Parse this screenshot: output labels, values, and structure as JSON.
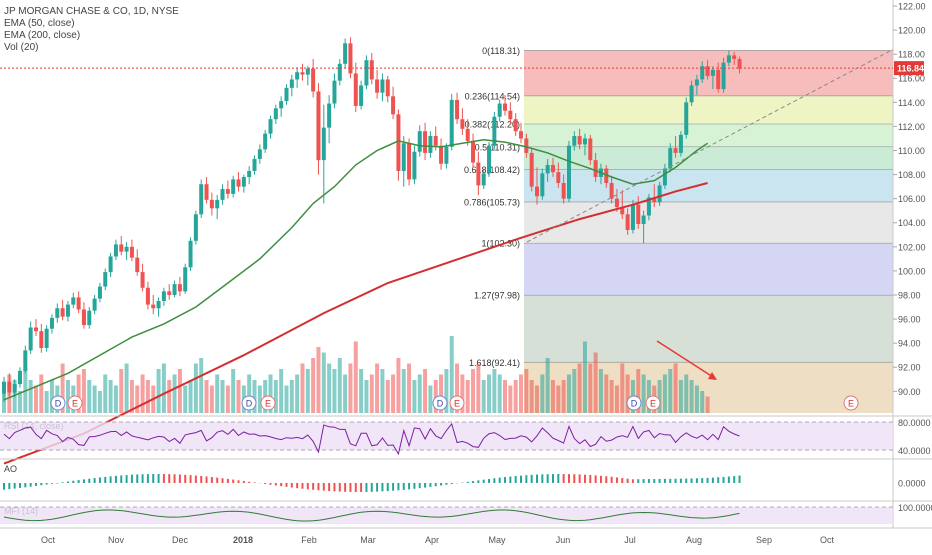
{
  "chart_data": {
    "type": "candlestick",
    "symbol_title": "JP MORGAN CHASE & CO, 1D, NYSE",
    "indicators": [
      "EMA (50, close)",
      "EMA (200, close)",
      "Vol (20)"
    ],
    "x_axis_labels": [
      "Oct",
      "Nov",
      "Dec",
      "2018",
      "Feb",
      "Mar",
      "Apr",
      "May",
      "Jun",
      "Jul",
      "Aug",
      "Sep",
      "Oct"
    ],
    "price_axis": {
      "ticks": [
        "122.00",
        "120.00",
        "118.00",
        "116.00",
        "114.00",
        "112.00",
        "110.00",
        "108.00",
        "106.00",
        "104.00",
        "102.00",
        "100.00",
        "98.00",
        "96.00",
        "94.00",
        "92.00",
        "90.00"
      ],
      "ylim": [
        88.2,
        122.0
      ],
      "current_price": "116.84",
      "current_price_value": 116.84,
      "current_price_color": "#e53935"
    },
    "fibonacci": {
      "levels": [
        {
          "label": "0(118.31)",
          "value": 118.31,
          "color": "#f4a7a7"
        },
        {
          "label": "0.236(114.54)",
          "value": 114.54,
          "color": "#e8f0b0"
        },
        {
          "label": "0.382(112.20)",
          "value": 112.2,
          "color": "#c8efc8"
        },
        {
          "label": "0.5(110.31)",
          "value": 110.31,
          "color": "#b8e6c8"
        },
        {
          "label": "0.618(108.42)",
          "value": 108.42,
          "color": "#b8dcea"
        },
        {
          "label": "0.786(105.73)",
          "value": 105.73,
          "color": "#e0e0e0"
        },
        {
          "label": "1(102.30)",
          "value": 102.3,
          "color": "#c5c8ef"
        },
        {
          "label": "1.27(97.98)",
          "value": 97.98,
          "color": "#c8d6c8"
        },
        {
          "label": "1.618(92.41)",
          "value": 92.41,
          "color": "#e8d3b0"
        }
      ]
    },
    "candles": [
      {
        "o": 89.8,
        "h": 91.2,
        "l": 89.1,
        "c": 90.8
      },
      {
        "o": 90.8,
        "h": 91.5,
        "l": 89.6,
        "c": 89.9
      },
      {
        "o": 89.9,
        "h": 91.0,
        "l": 89.5,
        "c": 90.6
      },
      {
        "o": 90.6,
        "h": 92.0,
        "l": 90.3,
        "c": 91.7
      },
      {
        "o": 91.7,
        "h": 93.8,
        "l": 91.5,
        "c": 93.4
      },
      {
        "o": 93.4,
        "h": 95.8,
        "l": 93.1,
        "c": 95.3
      },
      {
        "o": 95.3,
        "h": 96.0,
        "l": 94.6,
        "c": 95.0
      },
      {
        "o": 95.0,
        "h": 95.6,
        "l": 93.2,
        "c": 93.6
      },
      {
        "o": 93.6,
        "h": 95.5,
        "l": 93.3,
        "c": 95.2
      },
      {
        "o": 95.2,
        "h": 96.4,
        "l": 94.8,
        "c": 96.1
      },
      {
        "o": 96.1,
        "h": 97.3,
        "l": 95.7,
        "c": 96.9
      },
      {
        "o": 96.9,
        "h": 97.6,
        "l": 95.9,
        "c": 96.2
      },
      {
        "o": 96.2,
        "h": 97.5,
        "l": 95.8,
        "c": 97.2
      },
      {
        "o": 97.2,
        "h": 98.2,
        "l": 96.9,
        "c": 97.8
      },
      {
        "o": 97.8,
        "h": 98.3,
        "l": 96.5,
        "c": 96.8
      },
      {
        "o": 96.8,
        "h": 97.4,
        "l": 95.2,
        "c": 95.5
      },
      {
        "o": 95.5,
        "h": 97.0,
        "l": 95.2,
        "c": 96.7
      },
      {
        "o": 96.7,
        "h": 98.0,
        "l": 96.4,
        "c": 97.7
      },
      {
        "o": 97.7,
        "h": 99.0,
        "l": 97.4,
        "c": 98.7
      },
      {
        "o": 98.7,
        "h": 100.2,
        "l": 98.4,
        "c": 99.9
      },
      {
        "o": 99.9,
        "h": 101.5,
        "l": 99.5,
        "c": 101.2
      },
      {
        "o": 101.2,
        "h": 102.6,
        "l": 100.9,
        "c": 102.2
      },
      {
        "o": 102.2,
        "h": 102.9,
        "l": 101.3,
        "c": 101.6
      },
      {
        "o": 101.6,
        "h": 102.4,
        "l": 100.9,
        "c": 102.0
      },
      {
        "o": 102.0,
        "h": 102.6,
        "l": 100.8,
        "c": 101.1
      },
      {
        "o": 101.1,
        "h": 101.8,
        "l": 99.6,
        "c": 99.9
      },
      {
        "o": 99.9,
        "h": 100.6,
        "l": 98.3,
        "c": 98.6
      },
      {
        "o": 98.6,
        "h": 99.1,
        "l": 96.8,
        "c": 97.2
      },
      {
        "o": 97.2,
        "h": 98.0,
        "l": 96.4,
        "c": 96.9
      },
      {
        "o": 96.9,
        "h": 97.8,
        "l": 96.2,
        "c": 97.5
      },
      {
        "o": 97.5,
        "h": 98.6,
        "l": 97.1,
        "c": 98.3
      },
      {
        "o": 98.3,
        "h": 98.9,
        "l": 97.6,
        "c": 98.0
      },
      {
        "o": 98.0,
        "h": 99.2,
        "l": 97.8,
        "c": 98.9
      },
      {
        "o": 98.9,
        "h": 99.5,
        "l": 97.9,
        "c": 98.3
      },
      {
        "o": 98.3,
        "h": 100.6,
        "l": 98.1,
        "c": 100.3
      },
      {
        "o": 100.3,
        "h": 102.8,
        "l": 100.0,
        "c": 102.5
      },
      {
        "o": 102.5,
        "h": 105.0,
        "l": 102.2,
        "c": 104.7
      },
      {
        "o": 104.7,
        "h": 107.6,
        "l": 104.4,
        "c": 107.2
      },
      {
        "o": 107.2,
        "h": 107.8,
        "l": 105.6,
        "c": 105.9
      },
      {
        "o": 105.9,
        "h": 106.5,
        "l": 104.6,
        "c": 105.2
      },
      {
        "o": 105.2,
        "h": 106.3,
        "l": 104.3,
        "c": 105.9
      },
      {
        "o": 105.9,
        "h": 107.2,
        "l": 105.5,
        "c": 106.8
      },
      {
        "o": 106.8,
        "h": 107.5,
        "l": 106.0,
        "c": 106.4
      },
      {
        "o": 106.4,
        "h": 107.9,
        "l": 106.1,
        "c": 107.6
      },
      {
        "o": 107.6,
        "h": 108.2,
        "l": 106.6,
        "c": 107.0
      },
      {
        "o": 107.0,
        "h": 108.0,
        "l": 106.5,
        "c": 107.8
      },
      {
        "o": 107.8,
        "h": 108.7,
        "l": 107.2,
        "c": 108.3
      },
      {
        "o": 108.3,
        "h": 109.6,
        "l": 108.0,
        "c": 109.3
      },
      {
        "o": 109.3,
        "h": 110.5,
        "l": 108.9,
        "c": 110.1
      },
      {
        "o": 110.1,
        "h": 111.7,
        "l": 109.8,
        "c": 111.4
      },
      {
        "o": 111.4,
        "h": 112.9,
        "l": 111.0,
        "c": 112.6
      },
      {
        "o": 112.6,
        "h": 113.8,
        "l": 112.2,
        "c": 113.5
      },
      {
        "o": 113.5,
        "h": 114.5,
        "l": 112.8,
        "c": 114.1
      },
      {
        "o": 114.1,
        "h": 115.5,
        "l": 113.8,
        "c": 115.2
      },
      {
        "o": 115.2,
        "h": 116.3,
        "l": 114.5,
        "c": 115.9
      },
      {
        "o": 115.9,
        "h": 116.9,
        "l": 115.2,
        "c": 116.5
      },
      {
        "o": 116.5,
        "h": 117.2,
        "l": 115.8,
        "c": 116.3
      },
      {
        "o": 116.3,
        "h": 117.0,
        "l": 115.4,
        "c": 116.8
      },
      {
        "o": 116.8,
        "h": 117.6,
        "l": 114.4,
        "c": 114.9
      },
      {
        "o": 114.9,
        "h": 115.6,
        "l": 108.0,
        "c": 109.2
      },
      {
        "o": 109.2,
        "h": 113.8,
        "l": 105.6,
        "c": 111.9
      },
      {
        "o": 111.9,
        "h": 114.6,
        "l": 110.6,
        "c": 113.9
      },
      {
        "o": 113.9,
        "h": 116.4,
        "l": 113.5,
        "c": 115.8
      },
      {
        "o": 115.8,
        "h": 117.6,
        "l": 115.4,
        "c": 117.2
      },
      {
        "o": 117.2,
        "h": 119.3,
        "l": 116.8,
        "c": 118.9
      },
      {
        "o": 118.9,
        "h": 119.4,
        "l": 116.0,
        "c": 116.4
      },
      {
        "o": 116.4,
        "h": 117.3,
        "l": 113.2,
        "c": 113.7
      },
      {
        "o": 113.7,
        "h": 115.8,
        "l": 113.4,
        "c": 115.4
      },
      {
        "o": 115.4,
        "h": 117.9,
        "l": 115.1,
        "c": 117.5
      },
      {
        "o": 117.5,
        "h": 118.1,
        "l": 115.5,
        "c": 115.9
      },
      {
        "o": 115.9,
        "h": 116.7,
        "l": 114.3,
        "c": 114.8
      },
      {
        "o": 114.8,
        "h": 116.4,
        "l": 114.1,
        "c": 115.9
      },
      {
        "o": 115.9,
        "h": 116.2,
        "l": 114.0,
        "c": 114.5
      },
      {
        "o": 114.5,
        "h": 115.3,
        "l": 112.6,
        "c": 113.0
      },
      {
        "o": 113.0,
        "h": 113.4,
        "l": 107.5,
        "c": 108.3
      },
      {
        "o": 108.3,
        "h": 111.2,
        "l": 107.0,
        "c": 110.6
      },
      {
        "o": 110.6,
        "h": 111.0,
        "l": 107.1,
        "c": 107.6
      },
      {
        "o": 107.6,
        "h": 110.4,
        "l": 107.2,
        "c": 109.9
      },
      {
        "o": 109.9,
        "h": 112.1,
        "l": 109.5,
        "c": 111.6
      },
      {
        "o": 111.6,
        "h": 112.3,
        "l": 109.2,
        "c": 109.8
      },
      {
        "o": 109.8,
        "h": 111.6,
        "l": 109.4,
        "c": 111.2
      },
      {
        "o": 111.2,
        "h": 112.0,
        "l": 110.0,
        "c": 110.4
      },
      {
        "o": 110.4,
        "h": 111.0,
        "l": 108.4,
        "c": 108.9
      },
      {
        "o": 108.9,
        "h": 110.6,
        "l": 108.5,
        "c": 110.3
      },
      {
        "o": 110.3,
        "h": 114.7,
        "l": 110.0,
        "c": 114.2
      },
      {
        "o": 114.2,
        "h": 114.8,
        "l": 112.2,
        "c": 112.6
      },
      {
        "o": 112.6,
        "h": 113.5,
        "l": 111.3,
        "c": 111.8
      },
      {
        "o": 111.8,
        "h": 112.6,
        "l": 110.4,
        "c": 110.8
      },
      {
        "o": 110.8,
        "h": 111.4,
        "l": 108.6,
        "c": 109.0
      },
      {
        "o": 109.0,
        "h": 109.9,
        "l": 106.3,
        "c": 107.1
      },
      {
        "o": 107.1,
        "h": 108.4,
        "l": 106.8,
        "c": 108.1
      },
      {
        "o": 108.1,
        "h": 110.7,
        "l": 107.8,
        "c": 110.4
      },
      {
        "o": 110.4,
        "h": 113.2,
        "l": 110.1,
        "c": 112.8
      },
      {
        "o": 112.8,
        "h": 114.2,
        "l": 112.4,
        "c": 113.9
      },
      {
        "o": 113.9,
        "h": 114.6,
        "l": 112.9,
        "c": 113.3
      },
      {
        "o": 113.3,
        "h": 114.0,
        "l": 112.2,
        "c": 112.6
      },
      {
        "o": 112.6,
        "h": 113.1,
        "l": 111.2,
        "c": 111.6
      },
      {
        "o": 111.6,
        "h": 112.3,
        "l": 110.6,
        "c": 111.0
      },
      {
        "o": 111.0,
        "h": 111.4,
        "l": 109.4,
        "c": 109.8
      },
      {
        "o": 109.8,
        "h": 110.2,
        "l": 106.6,
        "c": 107.0
      },
      {
        "o": 107.0,
        "h": 108.6,
        "l": 105.5,
        "c": 106.2
      },
      {
        "o": 106.2,
        "h": 108.5,
        "l": 105.9,
        "c": 108.1
      },
      {
        "o": 108.1,
        "h": 109.3,
        "l": 107.4,
        "c": 108.8
      },
      {
        "o": 108.8,
        "h": 109.4,
        "l": 107.8,
        "c": 108.2
      },
      {
        "o": 108.2,
        "h": 109.0,
        "l": 106.9,
        "c": 107.3
      },
      {
        "o": 107.3,
        "h": 108.0,
        "l": 105.6,
        "c": 106.0
      },
      {
        "o": 106.0,
        "h": 110.8,
        "l": 105.7,
        "c": 110.4
      },
      {
        "o": 110.4,
        "h": 111.6,
        "l": 110.0,
        "c": 111.2
      },
      {
        "o": 111.2,
        "h": 111.8,
        "l": 110.1,
        "c": 110.5
      },
      {
        "o": 110.5,
        "h": 111.4,
        "l": 109.6,
        "c": 111.0
      },
      {
        "o": 111.0,
        "h": 111.3,
        "l": 108.8,
        "c": 109.2
      },
      {
        "o": 109.2,
        "h": 109.8,
        "l": 107.4,
        "c": 107.8
      },
      {
        "o": 107.8,
        "h": 108.9,
        "l": 107.2,
        "c": 108.5
      },
      {
        "o": 108.5,
        "h": 108.8,
        "l": 106.9,
        "c": 107.3
      },
      {
        "o": 107.3,
        "h": 107.9,
        "l": 105.6,
        "c": 106.0
      },
      {
        "o": 106.0,
        "h": 106.8,
        "l": 104.9,
        "c": 105.3
      },
      {
        "o": 105.3,
        "h": 106.7,
        "l": 104.3,
        "c": 104.7
      },
      {
        "o": 104.7,
        "h": 105.2,
        "l": 103.0,
        "c": 103.4
      },
      {
        "o": 103.4,
        "h": 105.9,
        "l": 103.1,
        "c": 105.5
      },
      {
        "o": 105.5,
        "h": 106.2,
        "l": 103.5,
        "c": 103.9
      },
      {
        "o": 103.9,
        "h": 105.0,
        "l": 102.3,
        "c": 104.6
      },
      {
        "o": 104.6,
        "h": 106.4,
        "l": 104.2,
        "c": 106.1
      },
      {
        "o": 106.1,
        "h": 107.2,
        "l": 105.3,
        "c": 105.7
      },
      {
        "o": 105.7,
        "h": 107.4,
        "l": 105.4,
        "c": 107.1
      },
      {
        "o": 107.1,
        "h": 108.9,
        "l": 106.8,
        "c": 108.5
      },
      {
        "o": 108.5,
        "h": 110.6,
        "l": 108.2,
        "c": 110.2
      },
      {
        "o": 110.2,
        "h": 111.2,
        "l": 109.4,
        "c": 109.8
      },
      {
        "o": 109.8,
        "h": 111.6,
        "l": 109.5,
        "c": 111.3
      },
      {
        "o": 111.3,
        "h": 114.4,
        "l": 111.0,
        "c": 114.0
      },
      {
        "o": 114.0,
        "h": 115.8,
        "l": 113.7,
        "c": 115.4
      },
      {
        "o": 115.4,
        "h": 116.3,
        "l": 114.6,
        "c": 115.9
      },
      {
        "o": 115.9,
        "h": 117.4,
        "l": 115.6,
        "c": 117.0
      },
      {
        "o": 117.0,
        "h": 117.5,
        "l": 115.9,
        "c": 116.2
      },
      {
        "o": 116.2,
        "h": 117.0,
        "l": 115.1,
        "c": 116.7
      },
      {
        "o": 116.7,
        "h": 117.3,
        "l": 114.8,
        "c": 115.1
      },
      {
        "o": 115.1,
        "h": 117.7,
        "l": 114.8,
        "c": 117.3
      },
      {
        "o": 117.3,
        "h": 118.3,
        "l": 117.0,
        "c": 117.9
      },
      {
        "o": 117.9,
        "h": 118.2,
        "l": 117.1,
        "c": 117.6
      },
      {
        "o": 117.6,
        "h": 117.8,
        "l": 116.4,
        "c": 116.8
      }
    ],
    "ema50": [
      [
        0,
        89.3
      ],
      [
        12,
        91.5
      ],
      [
        24,
        94.5
      ],
      [
        30,
        95.6
      ],
      [
        36,
        97.0
      ],
      [
        42,
        99.0
      ],
      [
        48,
        101.0
      ],
      [
        54,
        103.6
      ],
      [
        58,
        105.6
      ],
      [
        62,
        107.0
      ],
      [
        66,
        108.8
      ],
      [
        70,
        110.0
      ],
      [
        74,
        110.8
      ],
      [
        78,
        110.4
      ],
      [
        82,
        110.3
      ],
      [
        86,
        110.6
      ],
      [
        90,
        110.9
      ],
      [
        94,
        110.7
      ],
      [
        98,
        110.3
      ],
      [
        102,
        109.8
      ],
      [
        106,
        109.1
      ],
      [
        110,
        108.5
      ],
      [
        114,
        107.8
      ],
      [
        118,
        107.2
      ],
      [
        122,
        107.5
      ],
      [
        126,
        108.6
      ],
      [
        130,
        110.0
      ],
      [
        132,
        110.6
      ]
    ],
    "ema200": [
      [
        0,
        84.0
      ],
      [
        15,
        86.5
      ],
      [
        30,
        89.8
      ],
      [
        45,
        93.0
      ],
      [
        60,
        96.5
      ],
      [
        72,
        99.0
      ],
      [
        84,
        100.8
      ],
      [
        96,
        102.6
      ],
      [
        108,
        104.3
      ],
      [
        118,
        105.5
      ],
      [
        126,
        106.6
      ],
      [
        132,
        107.3
      ]
    ],
    "volume": {
      "values": [
        5,
        7,
        6,
        4,
        8,
        6,
        5,
        7,
        4,
        6,
        5,
        9,
        6,
        5,
        7,
        8,
        6,
        5,
        4,
        7,
        6,
        5,
        8,
        9,
        6,
        5,
        7,
        6,
        5,
        8,
        9,
        6,
        7,
        8,
        5,
        6,
        9,
        10,
        6,
        5,
        7,
        6,
        5,
        8,
        6,
        5,
        7,
        6,
        5,
        6,
        7,
        6,
        8,
        5,
        6,
        7,
        9,
        8,
        10,
        12,
        11,
        9,
        8,
        10,
        7,
        9,
        13,
        8,
        6,
        7,
        9,
        8,
        6,
        7,
        10,
        8,
        9,
        6,
        7,
        8,
        5,
        6,
        7,
        8,
        14,
        9,
        7,
        6,
        8,
        9,
        6,
        7,
        8,
        7,
        6,
        5,
        6,
        7,
        8,
        6,
        5,
        7,
        10,
        6,
        5,
        6,
        7,
        8,
        9,
        13,
        9,
        11,
        8,
        7,
        6,
        5,
        9,
        7,
        6,
        8,
        7,
        6,
        5,
        6,
        7,
        8,
        9,
        6,
        7,
        6,
        5,
        4,
        3
      ],
      "ylim": [
        0,
        20
      ]
    },
    "earnings_markers": [
      "D",
      "E",
      "D",
      "E",
      "D",
      "E",
      "D",
      "E",
      "E"
    ],
    "panes": [
      {
        "name": "RSI (14, close)",
        "ticks": [
          "80.0000",
          "40.0000"
        ]
      },
      {
        "name": "AO",
        "ticks": [
          "0.0000"
        ]
      },
      {
        "name": "MFI (14)",
        "ticks": [
          "100.0000"
        ]
      }
    ]
  },
  "colors": {
    "up": "#26a69a",
    "down": "#ef5350",
    "ema50": "#3c8f3c",
    "ema200": "#d32f2f",
    "rsi": "#7b1fa2",
    "mfi": "#2e7d32",
    "axis_text": "#555555"
  }
}
